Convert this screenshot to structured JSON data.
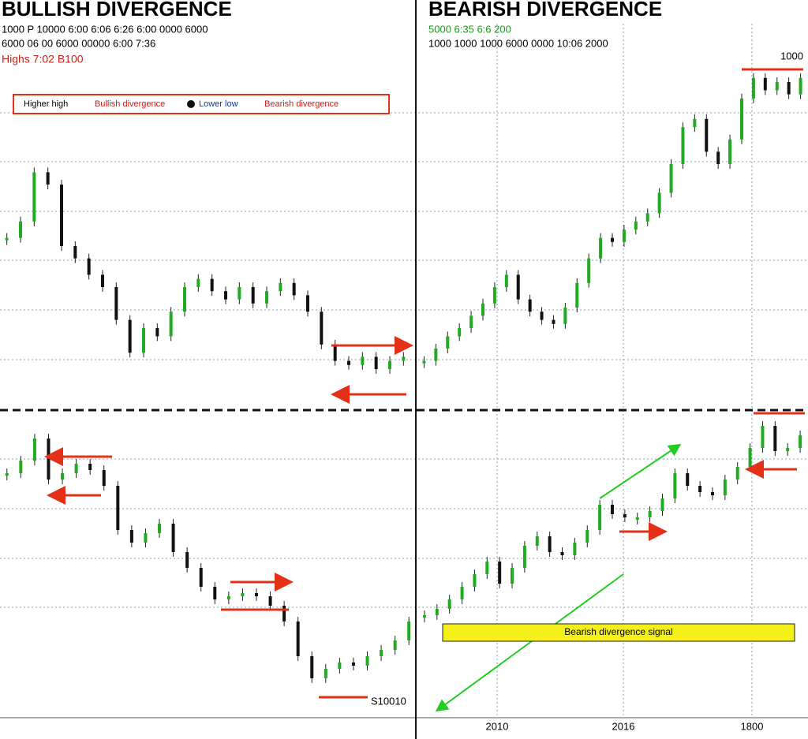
{
  "chart_data": [
    {
      "type": "candle",
      "title": "BULLISH DIVERGENCE",
      "subtitle": [
        "1000 P 10000 6:00 6:06 6:26 6:00 0000 6000",
        "6000 06 00 6000 00000 6:00 7:36"
      ],
      "note": "Highs 7:02 B100",
      "legend": [
        "Higher high",
        "Bullish divergence",
        "Lower low",
        "Bearish divergence"
      ],
      "ylim": [
        0,
        100
      ],
      "values": [
        42,
        46,
        58,
        55,
        40,
        37,
        33,
        30,
        22,
        14,
        20,
        18,
        24,
        30,
        32,
        29,
        27,
        30,
        26,
        29,
        31,
        28,
        24,
        16,
        12,
        11,
        13,
        10,
        12,
        13
      ]
    },
    {
      "type": "candle",
      "title": "BEARISH DIVERGENCE",
      "subtitle": [
        "5000 6:35 6:6 200",
        "1000 1000 1000 6000 0000 10:06 2000"
      ],
      "note": "1000",
      "ylim": [
        0,
        100
      ],
      "values": [
        12,
        15,
        18,
        20,
        23,
        26,
        30,
        33,
        27,
        24,
        22,
        21,
        25,
        31,
        37,
        42,
        41,
        44,
        46,
        48,
        53,
        60,
        69,
        71,
        63,
        60,
        66,
        76,
        81,
        78,
        80,
        77,
        81
      ]
    },
    {
      "type": "candle",
      "note": "S10010",
      "ylim": [
        0,
        100
      ],
      "values": [
        80,
        84,
        91,
        78,
        80,
        83,
        81,
        76,
        62,
        58,
        61,
        64,
        55,
        50,
        44,
        40,
        41,
        42,
        41,
        38,
        33,
        22,
        15,
        18,
        20,
        19,
        22,
        24,
        27,
        33
      ]
    },
    {
      "type": "candle",
      "note": "Bearish divergence signal",
      "xlabels": [
        "2010",
        "2016",
        "1800"
      ],
      "ylim": [
        0,
        100
      ],
      "values": [
        35,
        37,
        40,
        44,
        48,
        52,
        45,
        50,
        57,
        60,
        55,
        54,
        58,
        62,
        70,
        67,
        66,
        66,
        68,
        72,
        80,
        76,
        74,
        73,
        78,
        82,
        88,
        95,
        87,
        88,
        92
      ]
    }
  ]
}
